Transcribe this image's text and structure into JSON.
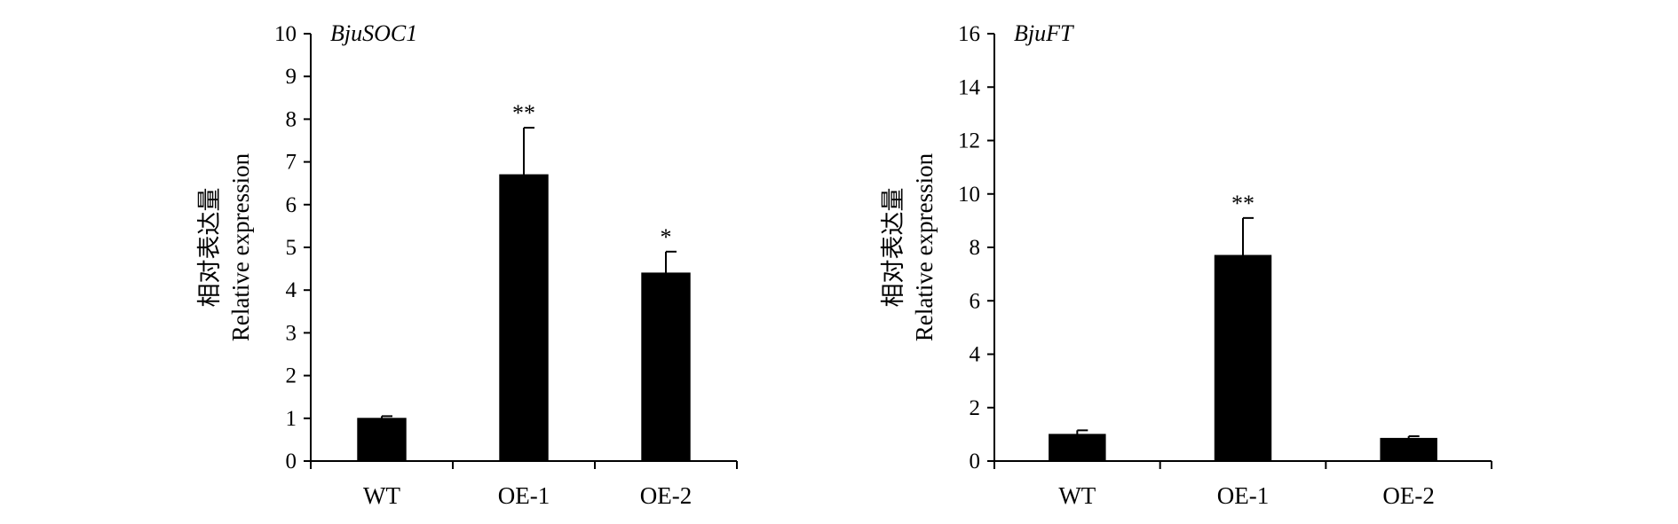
{
  "chart_data": [
    {
      "type": "bar",
      "title": "BjuSOC1",
      "ylabel_lines": [
        "相对表达量",
        "Relative expression"
      ],
      "xlabel": "",
      "categories": [
        "WT",
        "OE-1",
        "OE-2"
      ],
      "values": [
        1.0,
        6.7,
        4.4
      ],
      "errors": [
        0.05,
        1.1,
        0.5
      ],
      "significance": [
        "",
        "**",
        "*"
      ],
      "ylim": [
        0,
        10
      ],
      "yticks": [
        0,
        1,
        2,
        3,
        4,
        5,
        6,
        7,
        8,
        9,
        10
      ],
      "bar_color": "#000000",
      "grid": false
    },
    {
      "type": "bar",
      "title": "BjuFT",
      "ylabel_lines": [
        "相对表达量",
        "Relative expression"
      ],
      "xlabel": "",
      "categories": [
        "WT",
        "OE-1",
        "OE-2"
      ],
      "values": [
        1.0,
        7.7,
        0.85
      ],
      "errors": [
        0.15,
        1.4,
        0.08
      ],
      "significance": [
        "",
        "**",
        ""
      ],
      "ylim": [
        0,
        16
      ],
      "yticks": [
        0,
        2,
        4,
        6,
        8,
        10,
        12,
        14,
        16
      ],
      "bar_color": "#000000",
      "grid": false
    }
  ]
}
